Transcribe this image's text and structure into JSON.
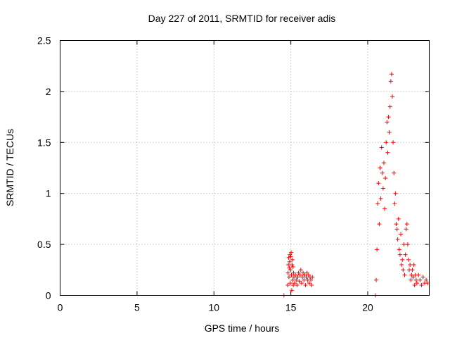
{
  "chart_data": {
    "type": "scatter",
    "title": "Day 227 of 2011, SRMTID for receiver adis",
    "xlabel": "GPS time / hours",
    "ylabel": "SRMTID / TECUs",
    "xlim": [
      0,
      24
    ],
    "ylim": [
      0,
      2.5
    ],
    "x_ticks": [
      "0",
      "5",
      "10",
      "15",
      "20"
    ],
    "x_tick_values": [
      0,
      5,
      10,
      15,
      20
    ],
    "y_ticks": [
      "0",
      "0.5",
      "1",
      "1.5",
      "2",
      "2.5"
    ],
    "y_tick_values": [
      0,
      0.5,
      1,
      1.5,
      2,
      2.5
    ],
    "grid": true,
    "marker": "plus",
    "color": "#ff0000",
    "series": [
      {
        "points": [
          [
            14.55,
            0.0
          ],
          [
            14.8,
            0.1
          ],
          [
            14.82,
            0.22
          ],
          [
            14.84,
            0.3
          ],
          [
            14.86,
            0.37
          ],
          [
            14.88,
            0.18
          ],
          [
            14.9,
            0.27
          ],
          [
            14.92,
            0.33
          ],
          [
            14.94,
            0.4
          ],
          [
            14.96,
            0.12
          ],
          [
            14.98,
            0.25
          ],
          [
            15.0,
            0.38
          ],
          [
            15.02,
            0.42
          ],
          [
            15.04,
            0.2
          ],
          [
            15.06,
            0.05
          ],
          [
            15.08,
            0.3
          ],
          [
            15.1,
            0.35
          ],
          [
            15.12,
            0.15
          ],
          [
            15.14,
            0.28
          ],
          [
            15.16,
            0.1
          ],
          [
            15.18,
            0.22
          ],
          [
            15.2,
            0.18
          ],
          [
            15.25,
            0.12
          ],
          [
            15.3,
            0.2
          ],
          [
            15.35,
            0.15
          ],
          [
            15.4,
            0.1
          ],
          [
            15.45,
            0.18
          ],
          [
            15.5,
            0.22
          ],
          [
            15.55,
            0.14
          ],
          [
            15.6,
            0.2
          ],
          [
            15.65,
            0.25
          ],
          [
            15.7,
            0.12
          ],
          [
            15.75,
            0.18
          ],
          [
            15.8,
            0.22
          ],
          [
            15.85,
            0.15
          ],
          [
            15.9,
            0.2
          ],
          [
            15.95,
            0.1
          ],
          [
            16.0,
            0.18
          ],
          [
            16.05,
            0.22
          ],
          [
            16.1,
            0.15
          ],
          [
            16.15,
            0.2
          ],
          [
            16.2,
            0.12
          ],
          [
            16.25,
            0.18
          ],
          [
            16.3,
            0.15
          ],
          [
            16.35,
            0.1
          ],
          [
            16.4,
            0.18
          ],
          [
            20.5,
            0.0
          ],
          [
            20.55,
            0.15
          ],
          [
            20.6,
            0.45
          ],
          [
            20.65,
            0.9
          ],
          [
            20.7,
            1.1
          ],
          [
            20.75,
            0.7
          ],
          [
            20.8,
            1.25
          ],
          [
            20.85,
            0.95
          ],
          [
            20.9,
            1.45
          ],
          [
            20.95,
            1.2
          ],
          [
            21.0,
            1.05
          ],
          [
            21.05,
            1.3
          ],
          [
            21.1,
            0.85
          ],
          [
            21.15,
            1.15
          ],
          [
            21.2,
            1.5
          ],
          [
            21.25,
            1.7
          ],
          [
            21.3,
            1.4
          ],
          [
            21.35,
            1.75
          ],
          [
            21.4,
            1.6
          ],
          [
            21.45,
            1.85
          ],
          [
            21.5,
            2.1
          ],
          [
            21.55,
            2.17
          ],
          [
            21.6,
            1.95
          ],
          [
            21.65,
            1.5
          ],
          [
            21.7,
            1.2
          ],
          [
            21.75,
            0.9
          ],
          [
            21.8,
            1.0
          ],
          [
            21.85,
            0.7
          ],
          [
            21.9,
            0.65
          ],
          [
            21.95,
            0.55
          ],
          [
            22.0,
            0.75
          ],
          [
            22.05,
            0.45
          ],
          [
            22.1,
            0.4
          ],
          [
            22.15,
            0.6
          ],
          [
            22.2,
            0.3
          ],
          [
            22.25,
            0.35
          ],
          [
            22.3,
            0.25
          ],
          [
            22.35,
            0.5
          ],
          [
            22.4,
            0.2
          ],
          [
            22.45,
            0.4
          ],
          [
            22.5,
            0.65
          ],
          [
            22.55,
            0.7
          ],
          [
            22.6,
            0.5
          ],
          [
            22.65,
            0.35
          ],
          [
            22.7,
            0.25
          ],
          [
            22.75,
            0.3
          ],
          [
            22.8,
            0.15
          ],
          [
            22.85,
            0.2
          ],
          [
            22.9,
            0.25
          ],
          [
            22.95,
            0.18
          ],
          [
            23.0,
            0.3
          ],
          [
            23.05,
            0.1
          ],
          [
            23.1,
            0.2
          ],
          [
            23.15,
            0.15
          ],
          [
            23.2,
            0.12
          ],
          [
            23.3,
            0.2
          ],
          [
            23.4,
            0.15
          ],
          [
            23.5,
            0.1
          ],
          [
            23.6,
            0.18
          ],
          [
            23.7,
            0.12
          ],
          [
            23.8,
            0.15
          ],
          [
            23.9,
            0.12
          ]
        ]
      }
    ]
  }
}
